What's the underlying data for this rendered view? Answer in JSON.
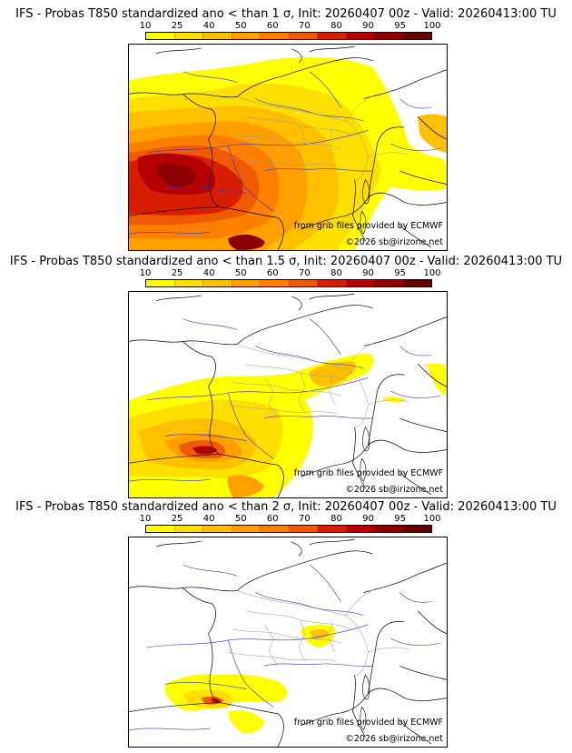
{
  "legend_labels": [
    "10",
    "25",
    "40",
    "50",
    "60",
    "70",
    "80",
    "90",
    "95",
    "100"
  ],
  "legend_colors": [
    "#ffff00",
    "#ffdf00",
    "#ffc000",
    "#ffa000",
    "#ff8000",
    "#f05a00",
    "#d81e00",
    "#b40000",
    "#8c0000",
    "#640000"
  ],
  "panels": [
    {
      "title": "IFS - Probas T850  standardized ano < than 1 σ, Init: 20260407 00z - Valid: 20260413:00 TU",
      "credit": "from grib files provided by ECMWF",
      "copyright": "©2026 sb@irizone.net"
    },
    {
      "title": "IFS - Probas T850  standardized ano < than 1.5 σ, Init: 20260407 00z - Valid: 20260413:00 TU",
      "credit": "from grib files provided by ECMWF",
      "copyright": "©2026 sb@irizone.net"
    },
    {
      "title": "IFS - Probas T850  standardized ano < than 2 σ, Init: 20260407 00z - Valid: 20260413:00 TU",
      "credit": "from grib files provided by ECMWF",
      "copyright": "©2026 sb@irizone.net"
    }
  ]
}
